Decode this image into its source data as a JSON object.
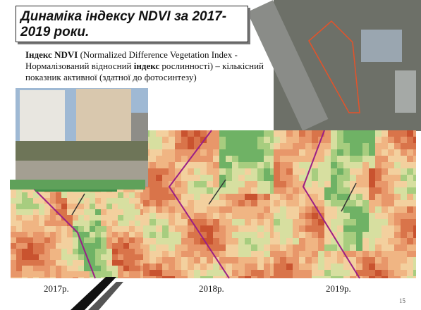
{
  "slide": {
    "title": "Динаміка індексу NDVI за 2017-2019 роки.",
    "paragraph": [
      "Індекс NDVI",
      " (Normalized Difference Vegetation Index - Нормалізований відносний ",
      "індекс",
      " рослинності) – кількісний показник активної (здатної до фотосинтезу)"
    ],
    "captions": [
      "2017р.",
      "2018р.",
      "2019р."
    ],
    "page_number": "15"
  }
}
